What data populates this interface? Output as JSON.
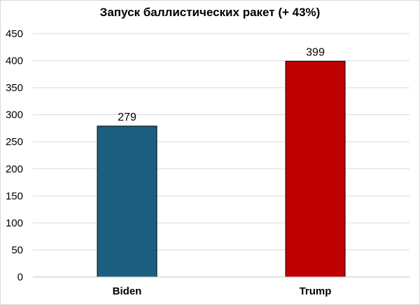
{
  "chart_data": {
    "type": "bar",
    "title": "Запуск баллистических ракет (+ 43%)",
    "categories": [
      "Biden",
      "Trump"
    ],
    "values": [
      279,
      399
    ],
    "colors": [
      "#1a5f80",
      "#c00000"
    ],
    "data_labels": [
      "279",
      "399"
    ],
    "ylim": [
      0,
      450
    ],
    "yticks": [
      "0",
      "50",
      "100",
      "150",
      "200",
      "250",
      "300",
      "350",
      "400",
      "450"
    ],
    "xlabel": "",
    "ylabel": "",
    "grid": true,
    "legend": "none"
  }
}
